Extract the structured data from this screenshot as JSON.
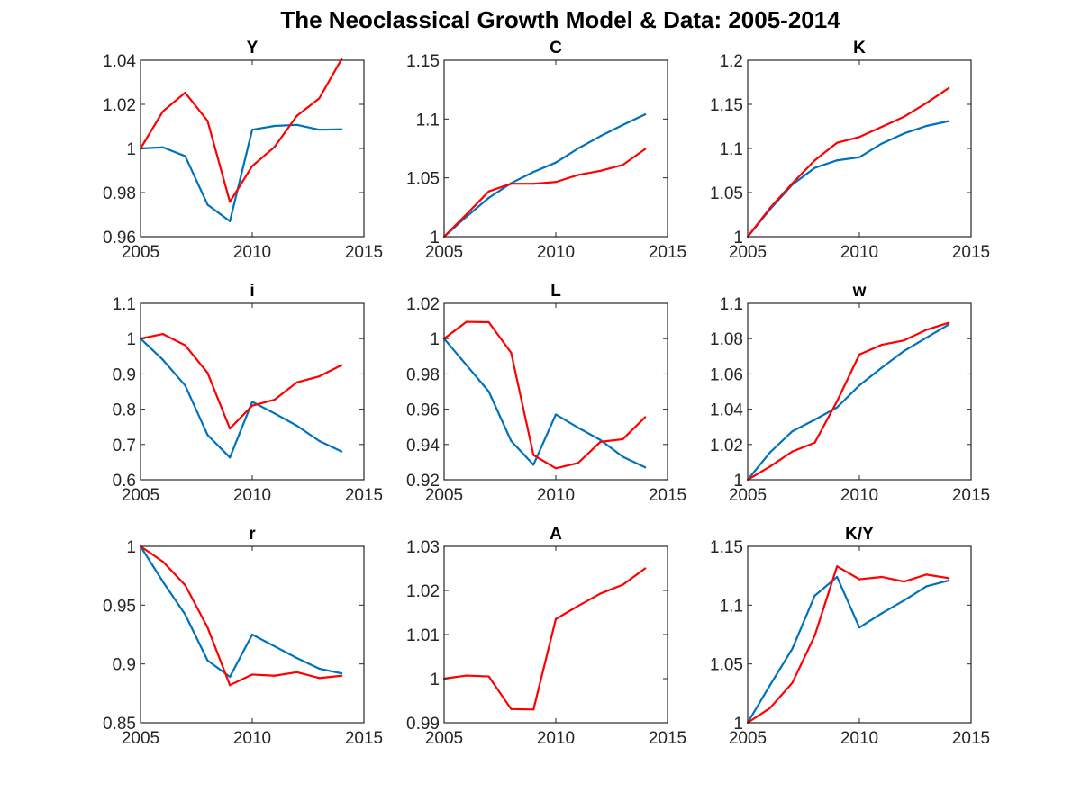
{
  "figure": {
    "title": "The Neoclassical Growth Model & Data: 2005-2014",
    "colors": {
      "series_a": "#0072bd",
      "series_b": "#ff0000",
      "axis": "#262626"
    }
  },
  "chart_data": [
    {
      "type": "line",
      "title": "Y",
      "xlim": [
        2005,
        2015
      ],
      "xticks": [
        2005,
        2010,
        2015
      ],
      "ylim": [
        0.96,
        1.04
      ],
      "yticks": [
        "0.96",
        "0.98",
        "1",
        "1.02",
        "1.04"
      ],
      "x": [
        2005,
        2006,
        2007,
        2008,
        2009,
        2010,
        2011,
        2012,
        2013,
        2014
      ],
      "series": [
        {
          "color": "#0072bd",
          "values": [
            1.0,
            1.0005,
            0.9965,
            0.9745,
            0.967,
            1.0085,
            1.0102,
            1.0107,
            1.0085,
            1.0087
          ]
        },
        {
          "color": "#ff0000",
          "values": [
            1.0,
            1.0168,
            1.0253,
            1.0125,
            0.9758,
            0.992,
            1.0007,
            1.0148,
            1.0227,
            1.0405
          ]
        }
      ]
    },
    {
      "type": "line",
      "title": "C",
      "xlim": [
        2005,
        2015
      ],
      "xticks": [
        2005,
        2010,
        2015
      ],
      "ylim": [
        1.0,
        1.15
      ],
      "yticks": [
        "1",
        "1.05",
        "1.1",
        "1.15"
      ],
      "x": [
        2005,
        2006,
        2007,
        2008,
        2009,
        2010,
        2011,
        2012,
        2013,
        2014
      ],
      "series": [
        {
          "color": "#0072bd",
          "values": [
            1.0,
            1.017,
            1.033,
            1.0455,
            1.055,
            1.063,
            1.075,
            1.0855,
            1.095,
            1.104
          ]
        },
        {
          "color": "#ff0000",
          "values": [
            1.0,
            1.019,
            1.0385,
            1.045,
            1.045,
            1.0465,
            1.0525,
            1.056,
            1.061,
            1.0745
          ]
        }
      ]
    },
    {
      "type": "line",
      "title": "K",
      "xlim": [
        2005,
        2015
      ],
      "xticks": [
        2005,
        2010,
        2015
      ],
      "ylim": [
        1.0,
        1.2
      ],
      "yticks": [
        "1",
        "1.05",
        "1.1",
        "1.15",
        "1.2"
      ],
      "x": [
        2005,
        2006,
        2007,
        2008,
        2009,
        2010,
        2011,
        2012,
        2013,
        2014
      ],
      "series": [
        {
          "color": "#0072bd",
          "values": [
            1.0,
            1.031,
            1.059,
            1.078,
            1.0865,
            1.09,
            1.1055,
            1.117,
            1.1255,
            1.131
          ]
        },
        {
          "color": "#ff0000",
          "values": [
            1.0,
            1.0325,
            1.0605,
            1.0865,
            1.1065,
            1.113,
            1.1245,
            1.136,
            1.1515,
            1.1685
          ]
        }
      ]
    },
    {
      "type": "line",
      "title": "i",
      "xlim": [
        2005,
        2015
      ],
      "xticks": [
        2005,
        2010,
        2015
      ],
      "ylim": [
        0.6,
        1.1
      ],
      "yticks": [
        "0.6",
        "0.7",
        "0.8",
        "0.9",
        "1",
        "1.1"
      ],
      "x": [
        2005,
        2006,
        2007,
        2008,
        2009,
        2010,
        2011,
        2012,
        2013,
        2014
      ],
      "series": [
        {
          "color": "#0072bd",
          "values": [
            1.0,
            0.94,
            0.867,
            0.727,
            0.663,
            0.821,
            0.788,
            0.753,
            0.71,
            0.68
          ]
        },
        {
          "color": "#ff0000",
          "values": [
            1.0,
            1.013,
            0.981,
            0.903,
            0.745,
            0.81,
            0.827,
            0.876,
            0.893,
            0.925
          ]
        }
      ]
    },
    {
      "type": "line",
      "title": "L",
      "xlim": [
        2005,
        2015
      ],
      "xticks": [
        2005,
        2010,
        2015
      ],
      "ylim": [
        0.92,
        1.02
      ],
      "yticks": [
        "0.92",
        "0.94",
        "0.96",
        "0.98",
        "1",
        "1.02"
      ],
      "x": [
        2005,
        2006,
        2007,
        2008,
        2009,
        2010,
        2011,
        2012,
        2013,
        2014
      ],
      "series": [
        {
          "color": "#0072bd",
          "values": [
            1.0,
            0.985,
            0.97,
            0.942,
            0.9285,
            0.957,
            0.9495,
            0.9425,
            0.933,
            0.927
          ]
        },
        {
          "color": "#ff0000",
          "values": [
            1.0,
            1.0095,
            1.0093,
            0.992,
            0.934,
            0.9265,
            0.9295,
            0.9415,
            0.943,
            0.9555
          ]
        }
      ]
    },
    {
      "type": "line",
      "title": "w",
      "xlim": [
        2005,
        2015
      ],
      "xticks": [
        2005,
        2010,
        2015
      ],
      "ylim": [
        1.0,
        1.1
      ],
      "yticks": [
        "1",
        "1.02",
        "1.04",
        "1.06",
        "1.08",
        "1.1"
      ],
      "x": [
        2005,
        2006,
        2007,
        2008,
        2009,
        2010,
        2011,
        2012,
        2013,
        2014
      ],
      "series": [
        {
          "color": "#0072bd",
          "values": [
            1.0,
            1.0155,
            1.0275,
            1.034,
            1.041,
            1.0535,
            1.0635,
            1.073,
            1.0805,
            1.088
          ]
        },
        {
          "color": "#ff0000",
          "values": [
            1.0,
            1.0075,
            1.016,
            1.021,
            1.0445,
            1.071,
            1.0765,
            1.079,
            1.085,
            1.089
          ]
        }
      ]
    },
    {
      "type": "line",
      "title": "r",
      "xlim": [
        2005,
        2015
      ],
      "xticks": [
        2005,
        2010,
        2015
      ],
      "ylim": [
        0.85,
        1.0
      ],
      "yticks": [
        "0.85",
        "0.9",
        "0.95",
        "1"
      ],
      "x": [
        2005,
        2006,
        2007,
        2008,
        2009,
        2010,
        2011,
        2012,
        2013,
        2014
      ],
      "series": [
        {
          "color": "#0072bd",
          "values": [
            1.0,
            0.97,
            0.942,
            0.903,
            0.889,
            0.925,
            0.915,
            0.905,
            0.896,
            0.892
          ]
        },
        {
          "color": "#ff0000",
          "values": [
            1.0,
            0.987,
            0.967,
            0.931,
            0.882,
            0.891,
            0.89,
            0.893,
            0.888,
            0.89
          ]
        }
      ]
    },
    {
      "type": "line",
      "title": "A",
      "xlim": [
        2005,
        2015
      ],
      "xticks": [
        2005,
        2010,
        2015
      ],
      "ylim": [
        0.99,
        1.03
      ],
      "yticks": [
        "0.99",
        "1",
        "1.01",
        "1.02",
        "1.03"
      ],
      "x": [
        2005,
        2006,
        2007,
        2008,
        2009,
        2010,
        2011,
        2012,
        2013,
        2014
      ],
      "series": [
        {
          "color": "#ff0000",
          "values": [
            1.0,
            1.0007,
            1.0005,
            0.9931,
            0.993,
            1.0135,
            1.0165,
            1.0193,
            1.0213,
            1.025
          ]
        }
      ]
    },
    {
      "type": "line",
      "title": "K/Y",
      "xlim": [
        2005,
        2015
      ],
      "xticks": [
        2005,
        2010,
        2015
      ],
      "ylim": [
        1.0,
        1.15
      ],
      "yticks": [
        "1",
        "1.05",
        "1.1",
        "1.15"
      ],
      "x": [
        2005,
        2006,
        2007,
        2008,
        2009,
        2010,
        2011,
        2012,
        2013,
        2014
      ],
      "series": [
        {
          "color": "#0072bd",
          "values": [
            1.0,
            1.032,
            1.063,
            1.108,
            1.124,
            1.081,
            1.093,
            1.104,
            1.116,
            1.121
          ]
        },
        {
          "color": "#ff0000",
          "values": [
            1.0,
            1.0125,
            1.034,
            1.074,
            1.133,
            1.122,
            1.124,
            1.12,
            1.126,
            1.123
          ]
        }
      ]
    }
  ]
}
